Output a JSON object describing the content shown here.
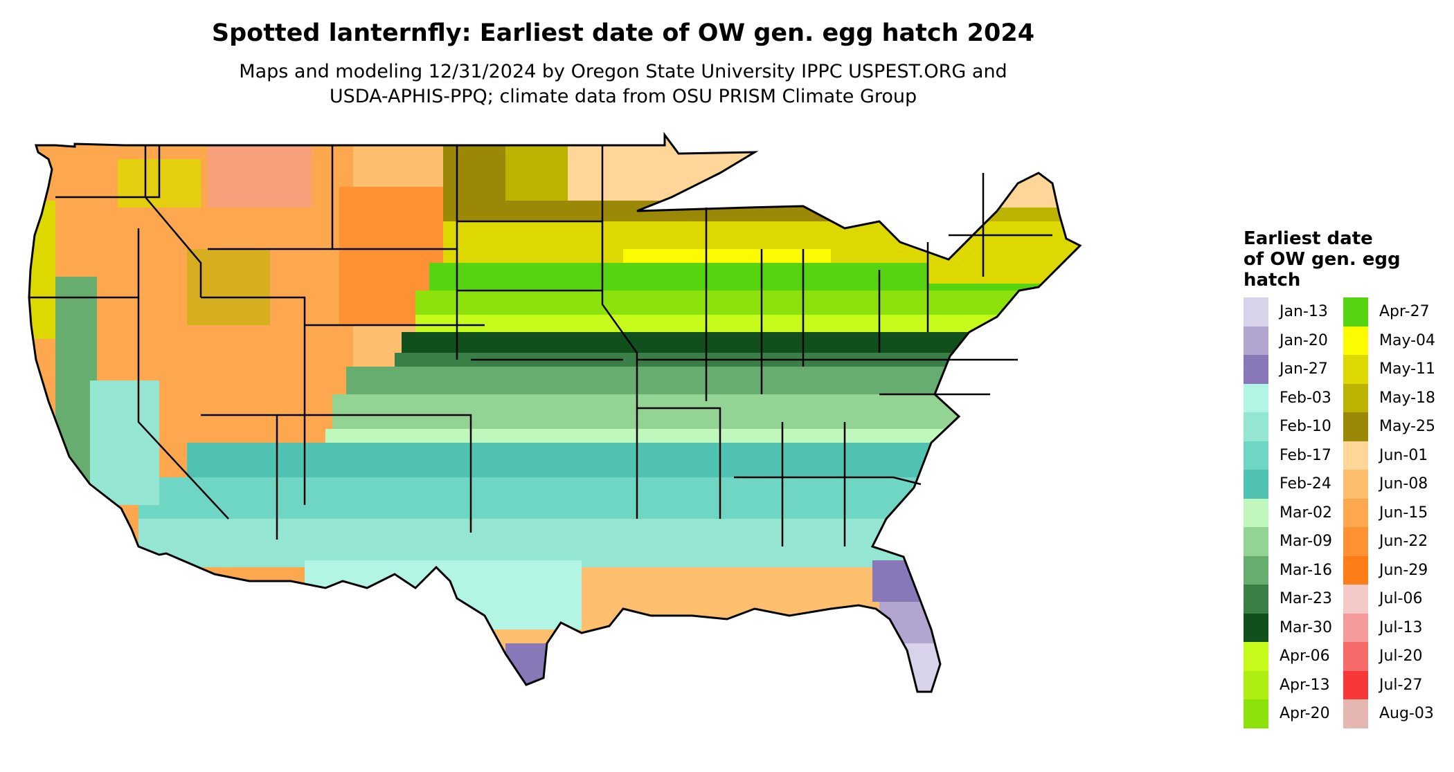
{
  "header": {
    "title": "Spotted lanternfly: Earliest date of OW gen. egg hatch 2024",
    "subtitle_line1": "Maps and modeling 12/31/2024 by Oregon State University IPPC USPEST.ORG and",
    "subtitle_line2": "USDA-APHIS-PPQ; climate data from OSU PRISM Climate Group"
  },
  "legend": {
    "title_line1": "Earliest date",
    "title_line2": "of OW gen. egg",
    "title_line3": "hatch",
    "items": [
      {
        "label": "Jan-13",
        "color": "#d8d3ea"
      },
      {
        "label": "Jan-20",
        "color": "#b2a5d0"
      },
      {
        "label": "Jan-27",
        "color": "#8878b8"
      },
      {
        "label": "Feb-03",
        "color": "#b3f5e4"
      },
      {
        "label": "Feb-10",
        "color": "#94e6d3"
      },
      {
        "label": "Feb-17",
        "color": "#6fd6c4"
      },
      {
        "label": "Feb-24",
        "color": "#50c2b1"
      },
      {
        "label": "Mar-02",
        "color": "#bff7bd"
      },
      {
        "label": "Mar-09",
        "color": "#93d494"
      },
      {
        "label": "Mar-16",
        "color": "#67ad6f"
      },
      {
        "label": "Mar-23",
        "color": "#3a7f45"
      },
      {
        "label": "Mar-30",
        "color": "#11501c"
      },
      {
        "label": "Apr-06",
        "color": "#c6fa1b"
      },
      {
        "label": "Apr-13",
        "color": "#aeee12"
      },
      {
        "label": "Apr-20",
        "color": "#8ee20c"
      },
      {
        "label": "Apr-27",
        "color": "#56d411"
      },
      {
        "label": "May-04",
        "color": "#fdfb00"
      },
      {
        "label": "May-11",
        "color": "#dcd800"
      },
      {
        "label": "May-18",
        "color": "#bcb300"
      },
      {
        "label": "May-25",
        "color": "#9b8806"
      },
      {
        "label": "Jun-01",
        "color": "#fed698"
      },
      {
        "label": "Jun-08",
        "color": "#fdbf6e"
      },
      {
        "label": "Jun-15",
        "color": "#fda84f"
      },
      {
        "label": "Jun-22",
        "color": "#fd9133"
      },
      {
        "label": "Jun-29",
        "color": "#fd7d18"
      },
      {
        "label": "Jul-06",
        "color": "#f6c9c9"
      },
      {
        "label": "Jul-13",
        "color": "#f49b9b"
      },
      {
        "label": "Jul-20",
        "color": "#f66a6a"
      },
      {
        "label": "Jul-27",
        "color": "#f63838"
      },
      {
        "label": "Aug-03",
        "color": "#e4b8b0"
      }
    ]
  }
}
